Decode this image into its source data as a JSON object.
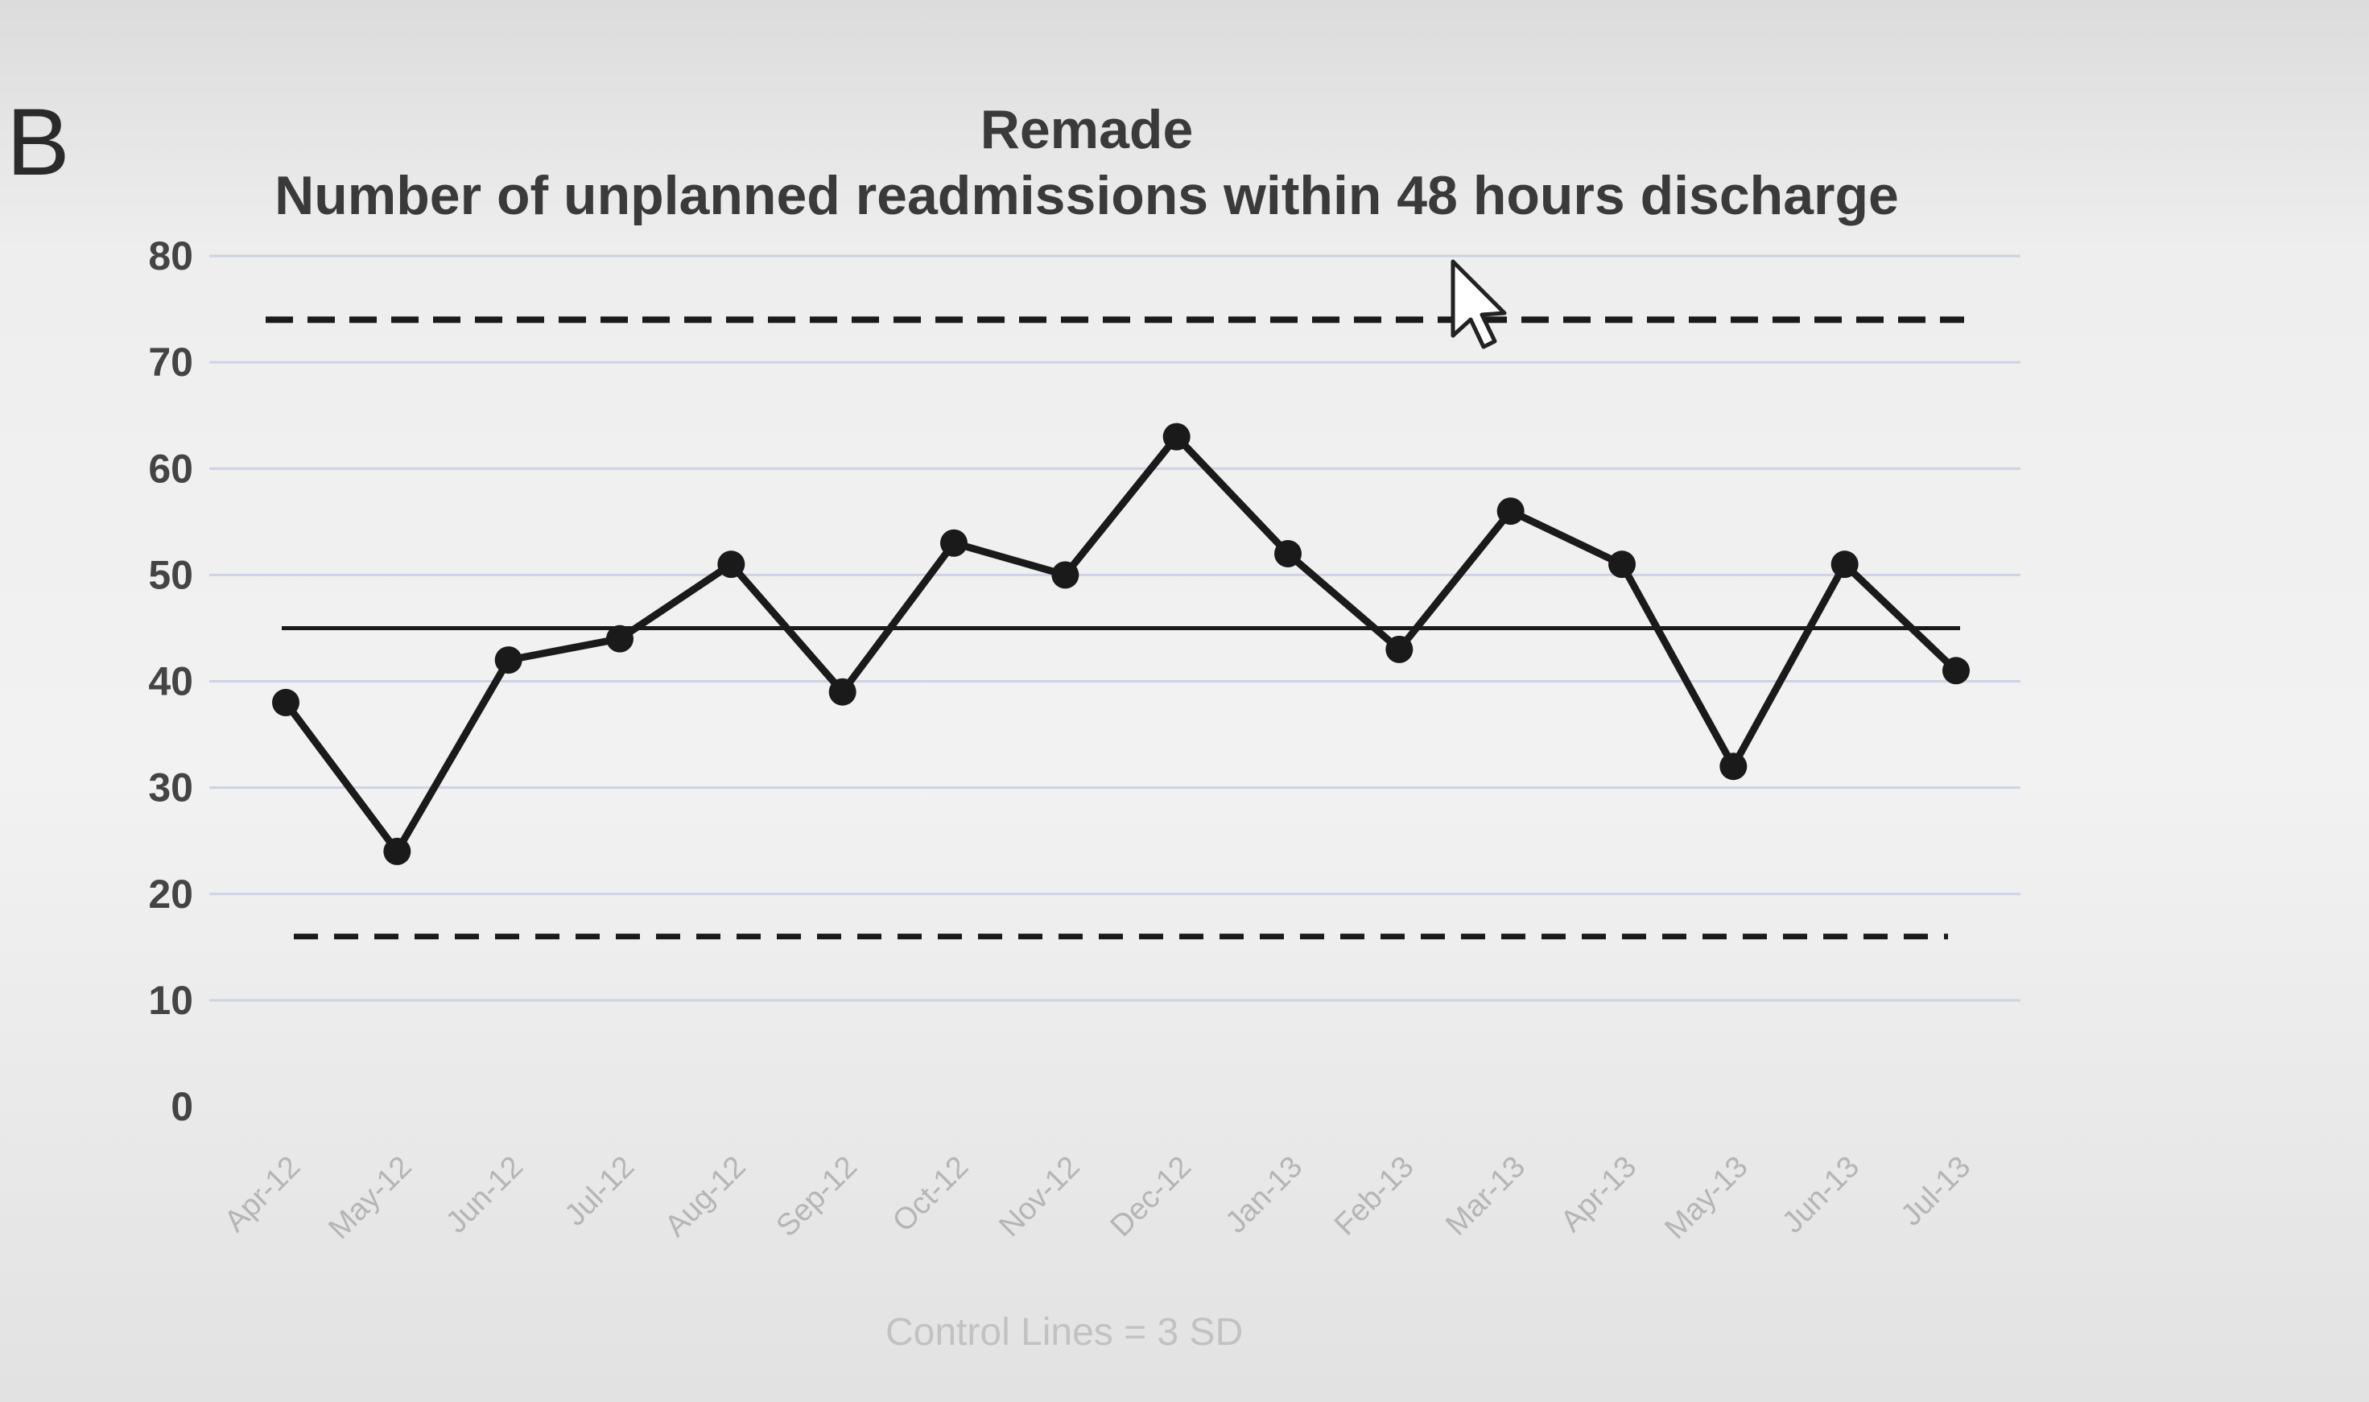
{
  "panel_label": "B",
  "chart_data": {
    "type": "line",
    "title": "Remade",
    "subtitle": "Number of unplanned readmissions within 48 hours discharge",
    "footnote": "Control Lines = 3 SD",
    "categories": [
      "Apr-12",
      "May-12",
      "Jun-12",
      "Jul-12",
      "Aug-12",
      "Sep-12",
      "Oct-12",
      "Nov-12",
      "Dec-12",
      "Jan-13",
      "Feb-13",
      "Mar-13",
      "Apr-13",
      "May-13",
      "Jun-13",
      "Jul-13"
    ],
    "series": [
      {
        "values": [
          38,
          24,
          42,
          44,
          51,
          39,
          53,
          50,
          63,
          52,
          43,
          56,
          51,
          32,
          51,
          41
        ]
      }
    ],
    "mean_line": 45,
    "upper_control_limit": 74,
    "lower_control_limit": 16,
    "ylim": [
      0,
      80
    ],
    "yticks": [
      0,
      10,
      20,
      30,
      40,
      50,
      60,
      70,
      80
    ],
    "grid": true,
    "legend": "none",
    "colors": {
      "line": "#1a1a1a",
      "gridline": "#cdd3e4",
      "axis_text": "#444444",
      "category_text": "#b5b5b5"
    }
  }
}
